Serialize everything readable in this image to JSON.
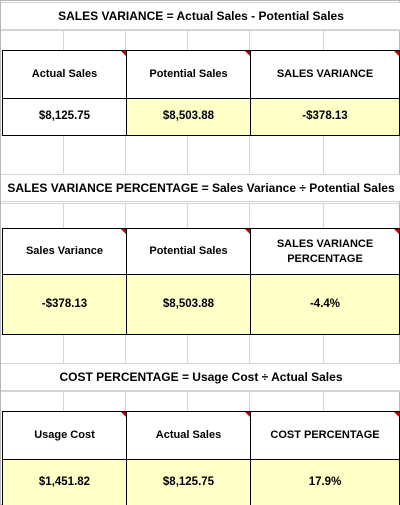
{
  "sections": [
    {
      "title": "SALES VARIANCE  =  Actual Sales - Potential Sales",
      "headers": [
        "Actual Sales",
        "Potential Sales",
        "SALES VARIANCE"
      ],
      "values": [
        "$8,125.75",
        "$8,503.88",
        "-$378.13"
      ]
    },
    {
      "title": "SALES VARIANCE PERCENTAGE  =  Sales Variance ÷ Potential Sales",
      "headers": [
        "Sales Variance",
        "Potential Sales",
        "SALES VARIANCE PERCENTAGE"
      ],
      "values": [
        "-$378.13",
        "$8,503.88",
        "-4.4%"
      ]
    },
    {
      "title": "COST PERCENTAGE  =  Usage Cost ÷ Actual Sales",
      "headers": [
        "Usage Cost",
        "Actual Sales",
        "COST PERCENTAGE"
      ],
      "values": [
        "$1,451.82",
        "$8,125.75",
        "17.9%"
      ]
    }
  ],
  "colors": {
    "input_fill": "#ffffc8",
    "comment_marker": "#c00000",
    "grid": "#d4d4d4"
  }
}
